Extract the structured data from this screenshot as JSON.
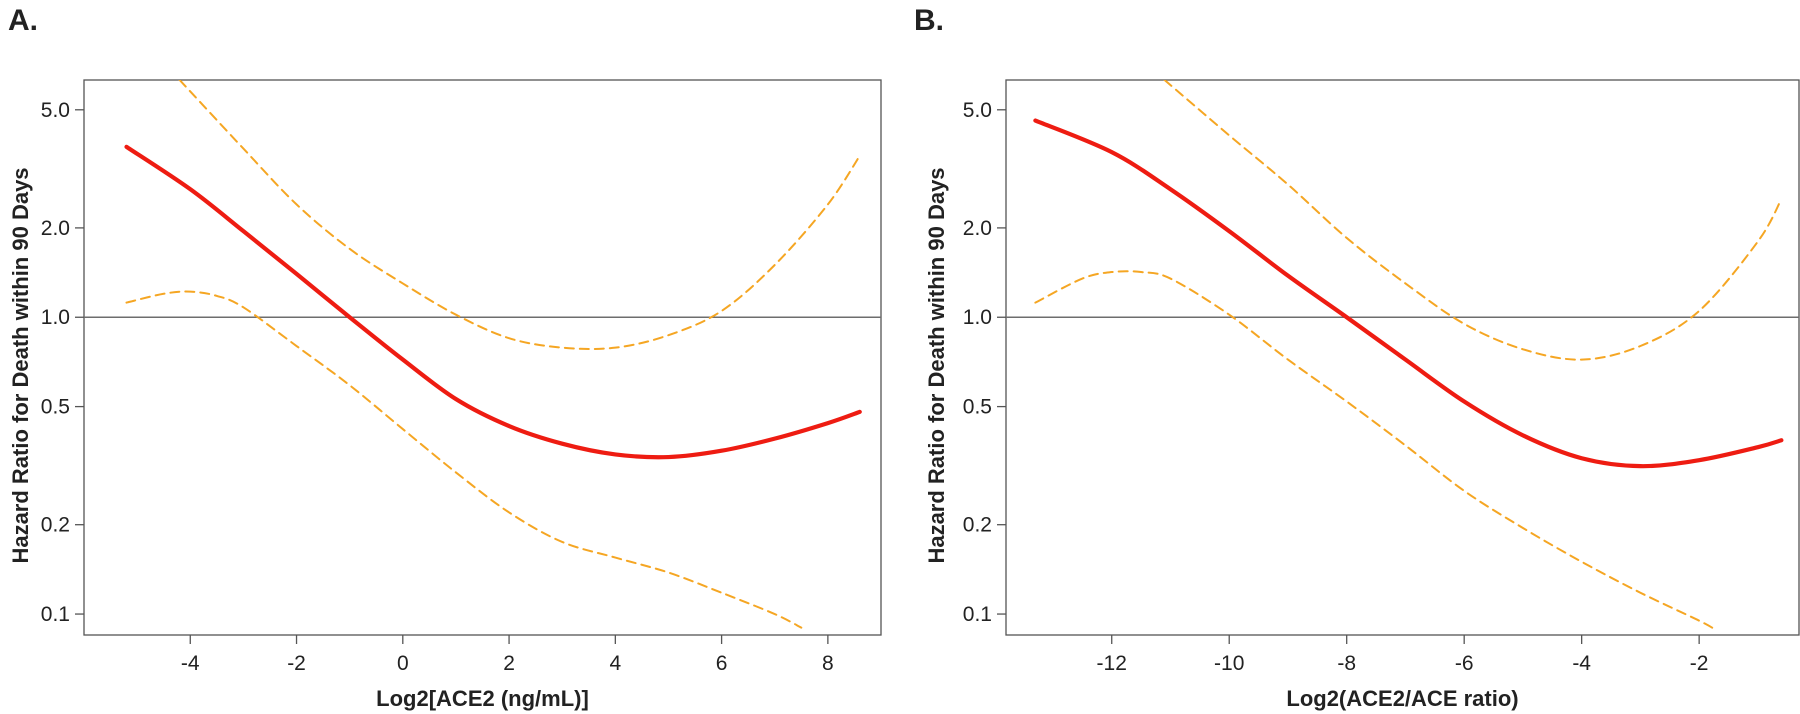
{
  "colors": {
    "estimate": "#ee1c12",
    "ci": "#f5a623",
    "reference": "#6d6d6d",
    "frame": "#555555"
  },
  "chart_data": [
    {
      "panel": "A.",
      "type": "line",
      "scale": {
        "y": "log"
      },
      "xlabel": "Log2[ACE2 (ng/mL)]",
      "ylabel": "Hazard Ratio for Death within 90 Days",
      "xlim": [
        -6,
        9
      ],
      "ylim": [
        0.085,
        6.3
      ],
      "xticks": [
        -4,
        -2,
        0,
        2,
        4,
        6,
        8
      ],
      "xtick_labels": [
        "-4",
        "-2",
        "0",
        "2",
        "4",
        "6",
        "8"
      ],
      "yticks": [
        0.1,
        0.2,
        0.5,
        1.0,
        2.0,
        5.0
      ],
      "ytick_labels": [
        "0.1",
        "0.2",
        "0.5",
        "1.0",
        "2.0",
        "5.0"
      ],
      "reference_line": 1.0,
      "series": [
        {
          "name": "Hazard ratio",
          "style": "solid",
          "x": [
            -5.2,
            -4,
            -3,
            -2,
            -1,
            0,
            1,
            2,
            3,
            4,
            5,
            6,
            7,
            8,
            8.6
          ],
          "y": [
            3.75,
            2.7,
            1.95,
            1.4,
            1.0,
            0.72,
            0.53,
            0.43,
            0.375,
            0.345,
            0.338,
            0.355,
            0.39,
            0.44,
            0.48
          ]
        },
        {
          "name": "Upper 95% CI",
          "style": "dashed",
          "x": [
            -4.2,
            -3,
            -2,
            -1,
            0,
            1,
            2,
            3,
            4,
            5,
            6,
            7,
            8,
            8.6
          ],
          "y": [
            6.3,
            3.7,
            2.4,
            1.7,
            1.3,
            1.02,
            0.85,
            0.79,
            0.79,
            0.87,
            1.05,
            1.5,
            2.4,
            3.5
          ]
        },
        {
          "name": "Lower 95% CI",
          "style": "dashed",
          "x": [
            -5.2,
            -4.5,
            -4,
            -3.5,
            -3,
            -2,
            -1,
            0,
            1,
            2,
            3,
            4,
            5,
            6,
            7,
            7.5
          ],
          "y": [
            1.12,
            1.2,
            1.22,
            1.18,
            1.08,
            0.8,
            0.59,
            0.42,
            0.3,
            0.22,
            0.175,
            0.155,
            0.138,
            0.118,
            0.1,
            0.09
          ]
        }
      ]
    },
    {
      "panel": "B.",
      "type": "line",
      "scale": {
        "y": "log"
      },
      "xlabel": "Log2(ACE2/ACE ratio)",
      "ylabel": "Hazard Ratio for Death within 90 Days",
      "xlim": [
        -13.8,
        -0.3
      ],
      "ylim": [
        0.085,
        6.3
      ],
      "xticks": [
        -12,
        -10,
        -8,
        -6,
        -4,
        -2
      ],
      "xtick_labels": [
        "-12",
        "-10",
        "-8",
        "-6",
        "-4",
        "-2"
      ],
      "yticks": [
        0.1,
        0.2,
        0.5,
        1.0,
        2.0,
        5.0
      ],
      "ytick_labels": [
        "0.1",
        "0.2",
        "0.5",
        "1.0",
        "2.0",
        "5.0"
      ],
      "reference_line": 1.0,
      "series": [
        {
          "name": "Hazard ratio",
          "style": "solid",
          "x": [
            -13.3,
            -12,
            -11,
            -10,
            -9,
            -8,
            -7,
            -6,
            -5,
            -4,
            -3,
            -2,
            -1,
            -0.6
          ],
          "y": [
            4.6,
            3.6,
            2.7,
            1.95,
            1.38,
            1.0,
            0.72,
            0.52,
            0.4,
            0.335,
            0.315,
            0.33,
            0.365,
            0.385
          ]
        },
        {
          "name": "Upper 95% CI",
          "style": "dashed",
          "x": [
            -11.1,
            -10,
            -9,
            -8,
            -7,
            -6,
            -5,
            -4,
            -3,
            -2,
            -1,
            -0.6
          ],
          "y": [
            6.3,
            4.1,
            2.8,
            1.85,
            1.3,
            0.95,
            0.78,
            0.72,
            0.8,
            1.05,
            1.8,
            2.5
          ]
        },
        {
          "name": "Lower 95% CI",
          "style": "dashed",
          "x": [
            -13.3,
            -12.5,
            -12,
            -11.5,
            -11,
            -10,
            -9,
            -8,
            -7,
            -6,
            -5,
            -4,
            -3,
            -2,
            -1.7
          ],
          "y": [
            1.12,
            1.35,
            1.42,
            1.42,
            1.35,
            1.02,
            0.72,
            0.52,
            0.37,
            0.26,
            0.195,
            0.15,
            0.118,
            0.095,
            0.088
          ]
        }
      ]
    }
  ]
}
